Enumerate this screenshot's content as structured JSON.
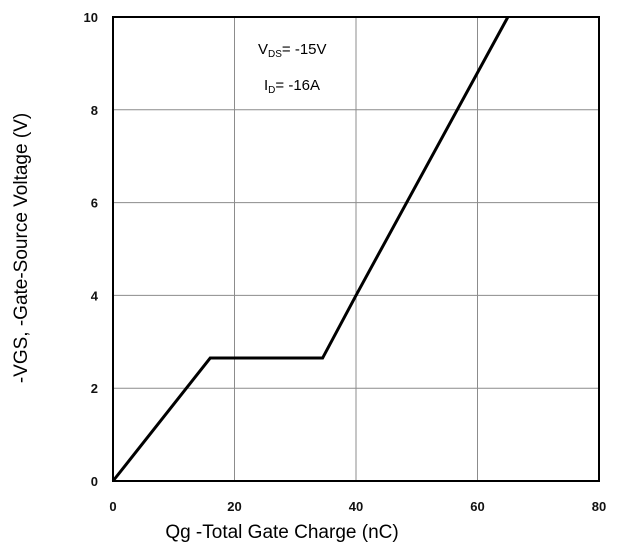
{
  "chart_data": {
    "type": "line",
    "xlabel": "Qg -Total Gate Charge (nC)",
    "ylabel": "-VGS, -Gate-Source Voltage (V)",
    "xlim": [
      0,
      80
    ],
    "ylim": [
      0,
      10
    ],
    "xticks": [
      "0",
      "20",
      "40",
      "60",
      "80"
    ],
    "yticks": [
      "0",
      "2",
      "4",
      "6",
      "8",
      "10"
    ],
    "grid": true,
    "series": [
      {
        "x": [
          0,
          16,
          34.5,
          40,
          65
        ],
        "y": [
          0,
          2.65,
          2.65,
          4.0,
          10
        ]
      }
    ],
    "annotations": {
      "vds": {
        "main": "V",
        "sub": "DS",
        "rest": "= -15V"
      },
      "id": {
        "main": "I",
        "sub": "D",
        "rest": "= -16A"
      }
    },
    "colors": {
      "line": "#000000",
      "grid": "#8c8c8c",
      "frame": "#000000"
    }
  }
}
